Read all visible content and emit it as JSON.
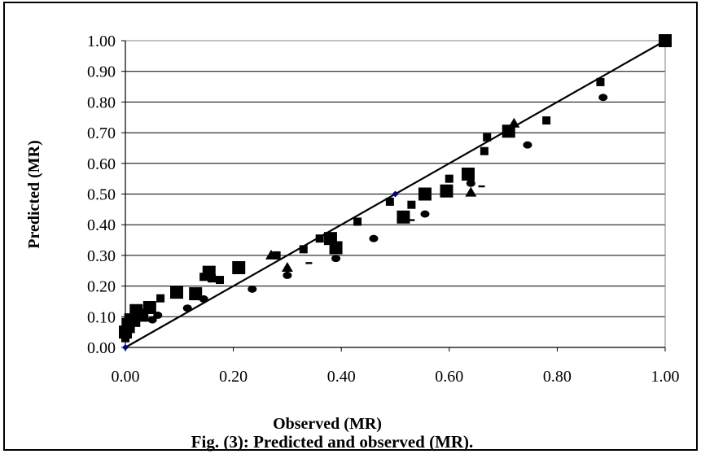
{
  "chart_data": {
    "type": "scatter",
    "title": "",
    "caption": "Fig. (3): Predicted and observed (MR).",
    "xlabel": "Observed (MR)",
    "ylabel": "Predicted (MR)",
    "xlim": [
      0,
      1
    ],
    "ylim": [
      0,
      1
    ],
    "xticks": [
      "0.00",
      "0.20",
      "0.40",
      "0.60",
      "0.80",
      "1.00"
    ],
    "yticks": [
      "0.00",
      "0.10",
      "0.20",
      "0.30",
      "0.40",
      "0.50",
      "0.60",
      "0.70",
      "0.80",
      "0.90",
      "1.00"
    ],
    "grid": "horizontal",
    "line": {
      "x": [
        0,
        1
      ],
      "y": [
        0,
        1
      ]
    },
    "series": [
      {
        "marker": "large-square",
        "color": "#000000",
        "x": [
          0.0,
          0.005,
          0.01,
          0.02,
          0.03,
          0.045,
          0.095,
          0.13,
          0.155,
          0.21,
          0.38,
          0.39,
          0.515,
          0.555,
          0.595,
          0.635,
          0.71,
          1.0
        ],
        "y": [
          0.05,
          0.075,
          0.09,
          0.12,
          0.105,
          0.13,
          0.18,
          0.175,
          0.245,
          0.26,
          0.355,
          0.325,
          0.425,
          0.5,
          0.51,
          0.565,
          0.705,
          1.0
        ]
      },
      {
        "marker": "small-square",
        "color": "#000000",
        "x": [
          0.0,
          0.01,
          0.02,
          0.035,
          0.065,
          0.145,
          0.16,
          0.175,
          0.28,
          0.33,
          0.36,
          0.43,
          0.49,
          0.53,
          0.6,
          0.665,
          0.67,
          0.78,
          0.88
        ],
        "y": [
          0.03,
          0.06,
          0.08,
          0.1,
          0.16,
          0.23,
          0.225,
          0.22,
          0.3,
          0.32,
          0.355,
          0.41,
          0.475,
          0.465,
          0.55,
          0.64,
          0.685,
          0.74,
          0.865
        ]
      },
      {
        "marker": "circle",
        "color": "#000000",
        "x": [
          0.05,
          0.06,
          0.115,
          0.145,
          0.235,
          0.3,
          0.39,
          0.46,
          0.555,
          0.64,
          0.745,
          0.885
        ],
        "y": [
          0.09,
          0.105,
          0.128,
          0.158,
          0.19,
          0.235,
          0.29,
          0.355,
          0.435,
          0.535,
          0.66,
          0.815
        ]
      },
      {
        "marker": "triangle",
        "color": "#000000",
        "x": [
          0.27,
          0.3,
          0.64,
          0.72
        ],
        "y": [
          0.3,
          0.26,
          0.505,
          0.73
        ]
      },
      {
        "marker": "dash",
        "color": "#000000",
        "x": [
          0.34,
          0.53,
          0.66
        ],
        "y": [
          0.275,
          0.415,
          0.525
        ]
      },
      {
        "marker": "diamond",
        "color": "#00008b",
        "x": [
          0.0,
          0.5
        ],
        "y": [
          0.0,
          0.5
        ]
      }
    ]
  }
}
